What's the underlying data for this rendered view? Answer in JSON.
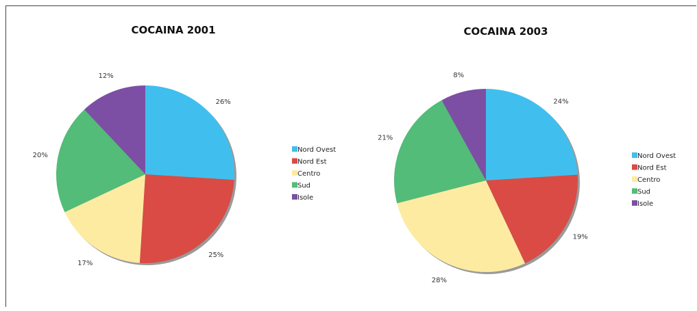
{
  "chart_data": [
    {
      "type": "pie",
      "title": "COCAINA 2001",
      "categories": [
        "Nord Ovest",
        "Nord Est",
        "Centro",
        "Sud",
        "Isole"
      ],
      "values": [
        26,
        25,
        17,
        20,
        12
      ],
      "value_labels": [
        "26%",
        "25%",
        "17%",
        "20%",
        "12%"
      ],
      "colors": [
        "#40BFEE",
        "#D94B44",
        "#FDEBA2",
        "#52BC78",
        "#7C4FA5"
      ],
      "legend": "right"
    },
    {
      "type": "pie",
      "title": "COCAINA 2003",
      "categories": [
        "Nord Ovest",
        "Nord Est",
        "Centro",
        "Sud",
        "Isole"
      ],
      "values": [
        24,
        19,
        28,
        21,
        8
      ],
      "value_labels": [
        "24%",
        "19%",
        "28%",
        "21%",
        "8%"
      ],
      "colors": [
        "#40BFEE",
        "#D94B44",
        "#FDEBA2",
        "#52BC78",
        "#7C4FA5"
      ],
      "legend": "right"
    }
  ]
}
